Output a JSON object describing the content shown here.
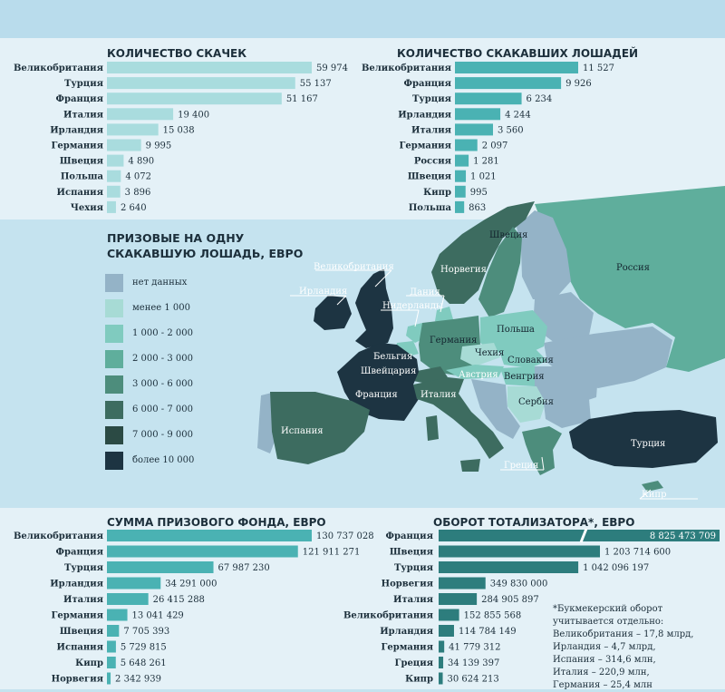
{
  "colors": {
    "bar_light": "#a9dcde",
    "bar_mid": "#4ab2b3",
    "bar_dark": "#2d7d7d",
    "sea": "#c5e3ef",
    "nodata": "#94b3c7"
  },
  "legend": {
    "title": "ПРИЗОВЫЕ НА ОДНУ СКАКАВШУЮ ЛОШАДЬ, ЕВРО",
    "items": [
      {
        "label": "нет данных",
        "color": "#94b3c7"
      },
      {
        "label": "менее 1 000",
        "color": "#a7dbd5"
      },
      {
        "label": "1 000 - 2 000",
        "color": "#80cbbf"
      },
      {
        "label": "2 000 - 3 000",
        "color": "#5fae9c"
      },
      {
        "label": "3 000 - 6 000",
        "color": "#4d8d7c"
      },
      {
        "label": "6 000 - 7 000",
        "color": "#3d6c60"
      },
      {
        "label": "7 000 - 9 000",
        "color": "#2b4a44"
      },
      {
        "label": "более 10 000",
        "color": "#1d3442"
      }
    ]
  },
  "map_labels": {
    "uk": "Великобритания",
    "ireland": "Ирландия",
    "denmark": "Дания",
    "netherlands": "Нидерланды",
    "belgium": "Бельгия",
    "switzerland": "Швейцария",
    "france": "Франция",
    "spain": "Испания",
    "italy": "Италия",
    "germany": "Германия",
    "norway": "Норвегия",
    "sweden": "Швеция",
    "poland": "Польша",
    "czech": "Чехия",
    "slovakia": "Словакия",
    "austria": "Австрия",
    "hungary": "Венгрия",
    "serbia": "Сербия",
    "russia": "Россия",
    "turkey": "Турция",
    "greece": "Греция",
    "cyprus": "Кипр"
  },
  "footnote": [
    "*Букмекерский оборот",
    "учитывается отдельно:",
    "Великобритания – 17,8 млрд,",
    "Ирландия – 4,7 млрд,",
    "Испания – 314,6 млн,",
    "Италия – 220,9 млн,",
    "Германия – 25,4 млн"
  ],
  "chart_data": [
    {
      "type": "bar",
      "title": "КОЛИЧЕСТВО СКАЧЕК",
      "categories": [
        "Великобритания",
        "Турция",
        "Франция",
        "Италия",
        "Ирландия",
        "Германия",
        "Швеция",
        "Польша",
        "Испания",
        "Чехия"
      ],
      "values": [
        59974,
        55137,
        51167,
        19400,
        15038,
        9995,
        4890,
        4072,
        3896,
        2640
      ],
      "labels": [
        "59 974",
        "55 137",
        "51 167",
        "19 400",
        "15 038",
        "9 995",
        "4 890",
        "4 072",
        "3 896",
        "2 640"
      ],
      "color": "#a9dcde"
    },
    {
      "type": "bar",
      "title": "КОЛИЧЕСТВО СКАКАВШИХ ЛОШАДЕЙ",
      "categories": [
        "Великобритания",
        "Франция",
        "Турция",
        "Ирландия",
        "Италия",
        "Германия",
        "Россия",
        "Швеция",
        "Кипр",
        "Польша"
      ],
      "values": [
        11527,
        9926,
        6234,
        4244,
        3560,
        2097,
        1281,
        1021,
        995,
        863
      ],
      "labels": [
        "11 527",
        "9 926",
        "6 234",
        "4 244",
        "3 560",
        "2 097",
        "1 281",
        "1 021",
        "995",
        "863"
      ],
      "color": "#4ab2b3"
    },
    {
      "type": "bar",
      "title": "СУММА ПРИЗОВОГО ФОНДА, ЕВРО",
      "categories": [
        "Великобритания",
        "Франция",
        "Турция",
        "Ирландия",
        "Италия",
        "Германия",
        "Швеция",
        "Испания",
        "Кипр",
        "Норвегия"
      ],
      "values": [
        130737028,
        121911271,
        67987230,
        34291000,
        26415288,
        13041429,
        7705393,
        5729815,
        5648261,
        2342939
      ],
      "labels": [
        "130 737 028",
        "121 911 271",
        "67 987 230",
        "34 291 000",
        "26 415 288",
        "13 041 429",
        "7 705 393",
        "5 729 815",
        "5 648 261",
        "2 342 939"
      ],
      "color": "#4ab2b3"
    },
    {
      "type": "bar",
      "title": "ОБОРОТ ТОТАЛИЗАТОРА*, ЕВРО",
      "categories": [
        "Франция",
        "Швеция",
        "Турция",
        "Норвегия",
        "Италия",
        "Великобритания",
        "Ирландия",
        "Германия",
        "Греция",
        "Кипр"
      ],
      "values": [
        8825473709,
        1203714600,
        1042096197,
        349830000,
        284905897,
        152855568,
        114784149,
        41779312,
        34139397,
        30624213
      ],
      "labels": [
        "8 825 473 709",
        "1 203 714 600",
        "1 042 096 197",
        "349 830 000",
        "284 905 897",
        "152 855 568",
        "114 784 149",
        "41 779 312",
        "34 139 397",
        "30 624 213"
      ],
      "color": "#2d7d7d"
    }
  ]
}
